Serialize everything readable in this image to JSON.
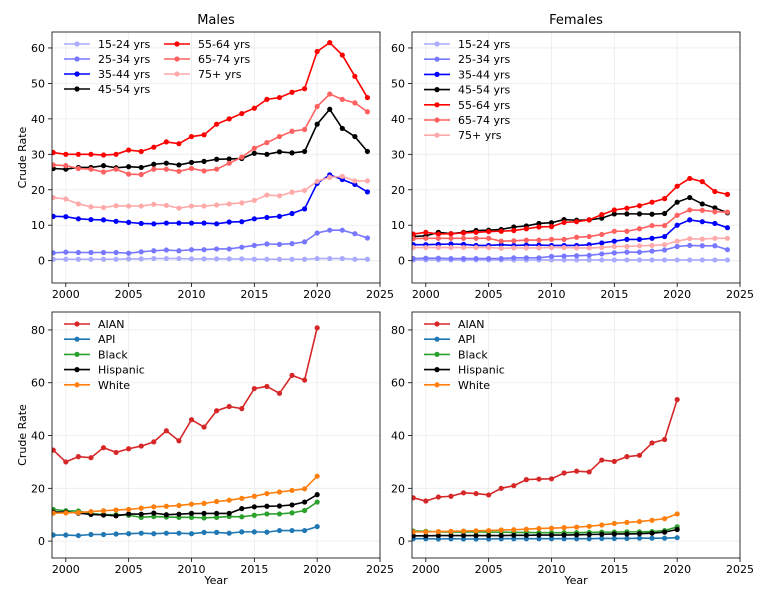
{
  "chart_data": [
    {
      "type": "line",
      "title": "Males",
      "xlabel": "",
      "ylabel": "Crude Rate",
      "xlim": [
        1998.9,
        2025
      ],
      "ylim": [
        -6.3,
        64.5
      ],
      "xticks": [
        2000,
        2005,
        2010,
        2015,
        2020,
        2025
      ],
      "yticks": [
        0,
        10,
        20,
        30,
        40,
        50,
        60
      ],
      "grid": true,
      "legend": "top-left",
      "legend_columns": 2,
      "x": [
        1999,
        2000,
        2001,
        2002,
        2003,
        2004,
        2005,
        2006,
        2007,
        2008,
        2009,
        2010,
        2011,
        2012,
        2013,
        2014,
        2015,
        2016,
        2017,
        2018,
        2019,
        2020,
        2021,
        2022,
        2023,
        2024
      ],
      "series": [
        {
          "name": "15-24 yrs",
          "color": "#aaaaff",
          "values": [
            0.4,
            0.4,
            0.4,
            0.4,
            0.4,
            0.4,
            0.5,
            0.5,
            0.6,
            0.6,
            0.6,
            0.5,
            0.5,
            0.5,
            0.5,
            0.5,
            0.4,
            0.4,
            0.4,
            0.4,
            0.4,
            0.6,
            0.6,
            0.6,
            0.4,
            0.4
          ]
        },
        {
          "name": "25-34 yrs",
          "color": "#7777ff",
          "values": [
            2.2,
            2.4,
            2.3,
            2.3,
            2.3,
            2.3,
            2.1,
            2.5,
            2.8,
            3.0,
            2.8,
            3.1,
            3.1,
            3.3,
            3.3,
            3.8,
            4.3,
            4.7,
            4.6,
            4.8,
            5.3,
            7.8,
            8.6,
            8.6,
            7.6,
            6.4
          ]
        },
        {
          "name": "35-44 yrs",
          "color": "#0000ff",
          "values": [
            12.5,
            12.4,
            11.8,
            11.6,
            11.5,
            11.1,
            10.8,
            10.5,
            10.4,
            10.6,
            10.6,
            10.6,
            10.6,
            10.4,
            10.9,
            11.0,
            11.8,
            12.2,
            12.5,
            13.3,
            14.6,
            21.8,
            24.2,
            22.9,
            21.5,
            19.4
          ]
        },
        {
          "name": "45-54 yrs",
          "color": "#000000",
          "values": [
            26.0,
            25.8,
            26.3,
            26.3,
            26.8,
            26.2,
            26.5,
            26.3,
            27.2,
            27.5,
            27.0,
            27.7,
            28.0,
            28.6,
            28.7,
            28.8,
            30.3,
            30.0,
            30.7,
            30.4,
            30.8,
            38.5,
            42.7,
            37.3,
            35.0,
            30.8
          ]
        },
        {
          "name": "55-64 yrs",
          "color": "#ff0000",
          "values": [
            30.5,
            30.0,
            30.0,
            30.0,
            29.8,
            30.0,
            31.2,
            30.8,
            32.0,
            33.5,
            33.0,
            35.0,
            35.5,
            38.5,
            40.0,
            41.5,
            43.0,
            45.5,
            46.0,
            47.5,
            48.5,
            59.0,
            61.5,
            58.0,
            52.0,
            46.0
          ]
        },
        {
          "name": "65-74 yrs",
          "color": "#ff6060",
          "values": [
            27.0,
            26.8,
            26.0,
            25.8,
            25.0,
            25.8,
            24.4,
            24.3,
            25.8,
            25.8,
            25.2,
            26.0,
            25.3,
            25.8,
            27.5,
            29.2,
            31.7,
            33.3,
            35.0,
            36.5,
            37.0,
            43.5,
            47.0,
            45.5,
            44.5,
            42.0
          ]
        },
        {
          "name": "75+ yrs",
          "color": "#ffaaaa",
          "values": [
            17.8,
            17.4,
            16.0,
            15.2,
            15.0,
            15.5,
            15.4,
            15.4,
            15.9,
            15.6,
            14.8,
            15.4,
            15.4,
            15.7,
            16.0,
            16.3,
            17.0,
            18.5,
            18.3,
            19.3,
            19.8,
            22.4,
            23.5,
            23.8,
            22.5,
            22.5
          ]
        }
      ]
    },
    {
      "type": "line",
      "title": "Females",
      "xlabel": "",
      "ylabel": "",
      "xlim": [
        1998.9,
        2025
      ],
      "ylim": [
        -6.3,
        64.5
      ],
      "xticks": [
        2000,
        2005,
        2010,
        2015,
        2020,
        2025
      ],
      "yticks": [
        0,
        10,
        20,
        30,
        40,
        50,
        60
      ],
      "grid": true,
      "legend": "top-left",
      "legend_columns": 1,
      "x": [
        1999,
        2000,
        2001,
        2002,
        2003,
        2004,
        2005,
        2006,
        2007,
        2008,
        2009,
        2010,
        2011,
        2012,
        2013,
        2014,
        2015,
        2016,
        2017,
        2018,
        2019,
        2020,
        2021,
        2022,
        2023,
        2024
      ],
      "series": [
        {
          "name": "15-24 yrs",
          "color": "#aaaaff",
          "values": [
            0.2,
            0.2,
            0.2,
            0.2,
            0.2,
            0.2,
            0.2,
            0.2,
            0.2,
            0.2,
            0.2,
            0.2,
            0.2,
            0.2,
            0.2,
            0.2,
            0.2,
            0.2,
            0.2,
            0.2,
            0.2,
            0.2,
            0.2,
            0.2,
            0.2,
            0.2
          ]
        },
        {
          "name": "25-34 yrs",
          "color": "#7777ff",
          "values": [
            0.6,
            0.7,
            0.7,
            0.6,
            0.6,
            0.6,
            0.6,
            0.6,
            0.8,
            0.8,
            0.8,
            1.2,
            1.3,
            1.4,
            1.5,
            1.9,
            2.2,
            2.4,
            2.4,
            2.7,
            3.0,
            4.0,
            4.3,
            4.2,
            4.2,
            3.1
          ]
        },
        {
          "name": "35-44 yrs",
          "color": "#0000ff",
          "values": [
            4.5,
            4.5,
            4.6,
            4.7,
            4.6,
            4.3,
            4.3,
            4.5,
            4.3,
            4.4,
            4.4,
            4.3,
            4.3,
            4.3,
            4.5,
            5.0,
            5.5,
            6.0,
            6.0,
            6.3,
            6.8,
            10.0,
            11.5,
            11.0,
            10.5,
            9.3
          ]
        },
        {
          "name": "45-54 yrs",
          "color": "#000000",
          "values": [
            6.8,
            7.0,
            8.0,
            7.6,
            8.0,
            8.5,
            8.6,
            8.8,
            9.5,
            9.8,
            10.5,
            10.7,
            11.6,
            11.4,
            11.5,
            12.0,
            13.2,
            13.2,
            13.2,
            13.1,
            13.3,
            16.5,
            17.8,
            16.0,
            14.9,
            13.5
          ]
        },
        {
          "name": "55-64 yrs",
          "color": "#ff0000",
          "values": [
            7.5,
            8.0,
            7.5,
            7.6,
            7.8,
            8.0,
            8.2,
            8.3,
            8.5,
            9.0,
            9.5,
            9.6,
            10.8,
            11.0,
            11.5,
            13.0,
            14.3,
            14.8,
            15.5,
            16.5,
            17.5,
            21.0,
            23.2,
            22.3,
            19.5,
            18.7
          ]
        },
        {
          "name": "65-74 yrs",
          "color": "#ff6060",
          "values": [
            6.2,
            6.3,
            6.3,
            6.3,
            6.3,
            6.3,
            6.3,
            5.5,
            5.6,
            5.8,
            5.8,
            6.0,
            6.0,
            6.6,
            6.8,
            7.4,
            8.3,
            8.3,
            9.0,
            9.9,
            9.9,
            12.8,
            14.3,
            14.2,
            13.8,
            13.7
          ]
        },
        {
          "name": "75+ yrs",
          "color": "#ffaaaa",
          "values": [
            3.7,
            3.7,
            3.7,
            3.7,
            3.7,
            3.7,
            3.7,
            3.5,
            3.6,
            3.6,
            3.6,
            3.7,
            3.7,
            3.6,
            3.6,
            3.7,
            4.0,
            4.0,
            4.2,
            4.3,
            4.5,
            5.5,
            6.2,
            6.1,
            6.3,
            6.3
          ]
        }
      ]
    },
    {
      "type": "line",
      "title": "",
      "xlabel": "Year",
      "ylabel": "Crude Rate",
      "xlim": [
        1998.9,
        2025
      ],
      "ylim": [
        -6.4,
        86.8
      ],
      "xticks": [
        2000,
        2005,
        2010,
        2015,
        2020,
        2025
      ],
      "yticks": [
        0,
        20,
        40,
        60,
        80
      ],
      "grid": true,
      "legend": "top-left",
      "legend_columns": 1,
      "x": [
        1999,
        2000,
        2001,
        2002,
        2003,
        2004,
        2005,
        2006,
        2007,
        2008,
        2009,
        2010,
        2011,
        2012,
        2013,
        2014,
        2015,
        2016,
        2017,
        2018,
        2019,
        2020
      ],
      "series": [
        {
          "name": "AIAN",
          "color": "#d62728",
          "values": [
            34.5,
            30.0,
            32.0,
            31.6,
            35.4,
            33.6,
            35.0,
            36.0,
            37.6,
            41.8,
            38.0,
            46.0,
            43.2,
            49.4,
            51.0,
            50.2,
            57.8,
            58.6,
            56.0,
            62.8,
            61.0,
            80.8
          ]
        },
        {
          "name": "API",
          "color": "#1f77b4",
          "values": [
            2.3,
            2.3,
            2.1,
            2.5,
            2.5,
            2.7,
            2.8,
            3.0,
            2.8,
            3.0,
            3.0,
            2.8,
            3.3,
            3.3,
            3.0,
            3.5,
            3.5,
            3.4,
            4.0,
            4.0,
            4.0,
            5.5
          ]
        },
        {
          "name": "Black",
          "color": "#2ca02c",
          "values": [
            12.0,
            11.5,
            11.4,
            10.5,
            10.0,
            10.0,
            9.8,
            9.0,
            9.3,
            9.1,
            9.0,
            9.0,
            8.8,
            9.0,
            9.3,
            9.2,
            9.8,
            10.3,
            10.3,
            10.7,
            11.6,
            14.8
          ]
        },
        {
          "name": "Hispanic",
          "color": "#000000",
          "values": [
            11.0,
            11.0,
            10.6,
            10.1,
            9.9,
            9.6,
            10.3,
            10.2,
            10.6,
            10.0,
            10.2,
            10.5,
            10.5,
            10.5,
            10.5,
            12.3,
            13.0,
            13.2,
            13.3,
            13.7,
            14.8,
            17.6
          ]
        },
        {
          "name": "White",
          "color": "#ff7f0e",
          "values": [
            10.6,
            10.7,
            10.8,
            11.2,
            11.5,
            11.8,
            12.0,
            12.5,
            13.0,
            13.2,
            13.5,
            14.0,
            14.3,
            15.0,
            15.5,
            16.2,
            17.0,
            18.0,
            18.6,
            19.2,
            19.8,
            24.6
          ]
        }
      ]
    },
    {
      "type": "line",
      "title": "",
      "xlabel": "Year",
      "ylabel": "",
      "xlim": [
        1998.9,
        2025
      ],
      "ylim": [
        -6.4,
        86.8
      ],
      "xticks": [
        2000,
        2005,
        2010,
        2015,
        2020,
        2025
      ],
      "yticks": [
        0,
        20,
        40,
        60,
        80
      ],
      "grid": true,
      "legend": "top-left",
      "legend_columns": 1,
      "x": [
        1999,
        2000,
        2001,
        2002,
        2003,
        2004,
        2005,
        2006,
        2007,
        2008,
        2009,
        2010,
        2011,
        2012,
        2013,
        2014,
        2015,
        2016,
        2017,
        2018,
        2019,
        2020
      ],
      "series": [
        {
          "name": "AIAN",
          "color": "#d62728",
          "values": [
            16.4,
            15.2,
            16.7,
            17.0,
            18.3,
            18.0,
            17.5,
            20.0,
            21.0,
            23.3,
            23.5,
            23.6,
            25.8,
            26.5,
            26.2,
            30.7,
            30.2,
            32.0,
            32.5,
            37.2,
            38.5,
            53.6
          ]
        },
        {
          "name": "API",
          "color": "#1f77b4",
          "values": [
            0.9,
            0.9,
            0.8,
            0.9,
            0.8,
            0.8,
            0.8,
            0.9,
            0.9,
            0.9,
            0.9,
            0.9,
            0.9,
            0.9,
            0.9,
            1.0,
            1.0,
            1.0,
            1.1,
            1.1,
            1.1,
            1.3
          ]
        },
        {
          "name": "Black",
          "color": "#2ca02c",
          "values": [
            3.8,
            3.7,
            3.5,
            3.4,
            3.4,
            3.5,
            3.4,
            3.4,
            3.3,
            3.3,
            3.2,
            3.2,
            3.2,
            3.2,
            3.3,
            3.4,
            3.4,
            3.5,
            3.5,
            3.6,
            4.0,
            5.4
          ]
        },
        {
          "name": "Hispanic",
          "color": "#000000",
          "values": [
            2.0,
            2.0,
            2.1,
            2.1,
            2.1,
            2.1,
            2.1,
            2.1,
            2.2,
            2.2,
            2.3,
            2.3,
            2.3,
            2.4,
            2.5,
            2.6,
            2.7,
            2.7,
            2.8,
            3.0,
            3.4,
            4.4
          ]
        },
        {
          "name": "White",
          "color": "#ff7f0e",
          "values": [
            3.5,
            3.5,
            3.6,
            3.7,
            3.8,
            3.9,
            4.0,
            4.2,
            4.3,
            4.5,
            4.8,
            4.9,
            5.1,
            5.3,
            5.6,
            6.1,
            6.7,
            7.1,
            7.4,
            7.9,
            8.5,
            10.3
          ]
        }
      ]
    }
  ]
}
